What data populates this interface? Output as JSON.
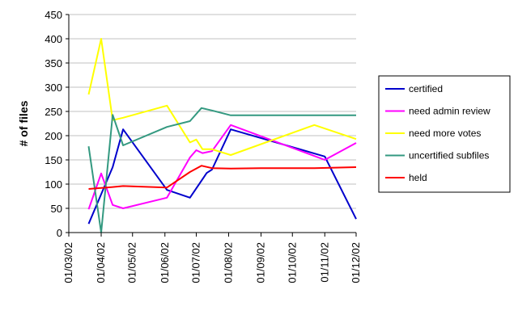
{
  "chart_data": {
    "type": "line",
    "title": "",
    "xlabel": "",
    "ylabel": "# of files",
    "ylim": [
      0,
      450
    ],
    "yticks": [
      "0",
      "50",
      "100",
      "150",
      "200",
      "250",
      "300",
      "350",
      "400",
      "450"
    ],
    "xlim": [
      "2002-03-01",
      "2002-12-01"
    ],
    "xticks": [
      "01/03/02",
      "01/04/02",
      "01/05/02",
      "01/06/02",
      "01/07/02",
      "01/08/02",
      "01/09/02",
      "01/10/02",
      "01/11/02",
      "01/12/02"
    ],
    "grid": "horizontal",
    "legend": "right",
    "series": [
      {
        "name": "certified",
        "color": "#0000cc",
        "points": [
          [
            "2002-03-20",
            18
          ],
          [
            "2002-04-12",
            135
          ],
          [
            "2002-04-22",
            213
          ],
          [
            "2002-06-03",
            88
          ],
          [
            "2002-06-25",
            72
          ],
          [
            "2002-07-11",
            123
          ],
          [
            "2002-07-16",
            130
          ],
          [
            "2002-08-03",
            213
          ],
          [
            "2002-11-01",
            157
          ],
          [
            "2002-12-01",
            28
          ]
        ]
      },
      {
        "name": "need admin review",
        "color": "#ff00ff",
        "points": [
          [
            "2002-03-20",
            48
          ],
          [
            "2002-04-01",
            122
          ],
          [
            "2002-04-12",
            57
          ],
          [
            "2002-04-22",
            50
          ],
          [
            "2002-06-03",
            72
          ],
          [
            "2002-06-25",
            155
          ],
          [
            "2002-07-01",
            170
          ],
          [
            "2002-07-07",
            164
          ],
          [
            "2002-07-16",
            168
          ],
          [
            "2002-08-03",
            222
          ],
          [
            "2002-11-01",
            150
          ],
          [
            "2002-12-01",
            185
          ]
        ]
      },
      {
        "name": "need more votes",
        "color": "#ffff00",
        "points": [
          [
            "2002-03-20",
            285
          ],
          [
            "2002-04-01",
            400
          ],
          [
            "2002-04-12",
            232
          ],
          [
            "2002-04-22",
            237
          ],
          [
            "2002-06-03",
            262
          ],
          [
            "2002-06-25",
            186
          ],
          [
            "2002-07-01",
            192
          ],
          [
            "2002-07-07",
            172
          ],
          [
            "2002-07-16",
            172
          ],
          [
            "2002-08-03",
            160
          ],
          [
            "2002-10-22",
            222
          ],
          [
            "2002-12-01",
            193
          ]
        ]
      },
      {
        "name": "uncertified subfiles",
        "color": "#339980",
        "points": [
          [
            "2002-03-20",
            178
          ],
          [
            "2002-04-01",
            0
          ],
          [
            "2002-04-12",
            243
          ],
          [
            "2002-04-22",
            180
          ],
          [
            "2002-06-03",
            218
          ],
          [
            "2002-06-25",
            230
          ],
          [
            "2002-07-06",
            257
          ],
          [
            "2002-07-16",
            252
          ],
          [
            "2002-08-03",
            242
          ],
          [
            "2002-12-01",
            242
          ]
        ]
      },
      {
        "name": "held",
        "color": "#ff0000",
        "points": [
          [
            "2002-03-20",
            90
          ],
          [
            "2002-04-12",
            94
          ],
          [
            "2002-04-22",
            96
          ],
          [
            "2002-06-03",
            93
          ],
          [
            "2002-06-25",
            125
          ],
          [
            "2002-07-06",
            138
          ],
          [
            "2002-07-16",
            133
          ],
          [
            "2002-08-03",
            132
          ],
          [
            "2002-09-01",
            133
          ],
          [
            "2002-10-22",
            133
          ],
          [
            "2002-12-01",
            135
          ]
        ]
      }
    ]
  }
}
